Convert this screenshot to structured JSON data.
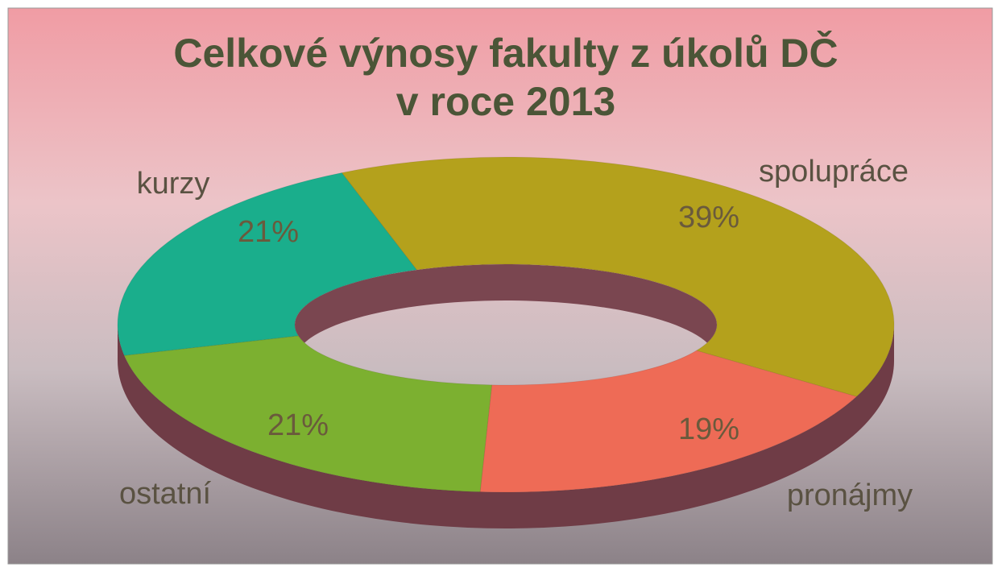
{
  "chart_data": {
    "type": "donut",
    "title": [
      "Celkové výnosy fakulty z úkolů DČ",
      "v roce 2013"
    ],
    "categories": [
      "spolupráce",
      "pronájmy",
      "ostatní",
      "kurzy"
    ],
    "values": [
      39,
      19,
      21,
      21
    ],
    "value_labels": [
      "39%",
      "19%",
      "21%",
      "21%"
    ],
    "colors": [
      "#b4a11c",
      "#ee6b56",
      "#7cb030",
      "#1aae8c"
    ]
  }
}
